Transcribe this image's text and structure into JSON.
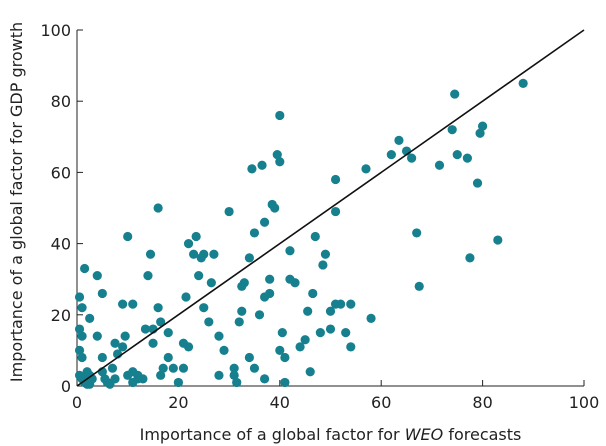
{
  "chart_data": {
    "type": "scatter",
    "title": "",
    "xlabel_prefix": "Importance of a global factor for ",
    "xlabel_italic": "WEO",
    "xlabel_suffix": " forecasts",
    "ylabel": "Importance of a global factor for GDP growth",
    "xlim": [
      0,
      100
    ],
    "ylim": [
      0,
      100
    ],
    "xticks": [
      0,
      20,
      40,
      60,
      80,
      100
    ],
    "yticks": [
      0,
      20,
      40,
      60,
      80,
      100
    ],
    "grid": false,
    "legend": "none",
    "point_color": "#17808f",
    "reference_line": {
      "from": [
        0,
        0
      ],
      "to": [
        100,
        100
      ],
      "color": "#111111"
    },
    "series": [
      {
        "points": [
          [
            0.5,
            25
          ],
          [
            0.5,
            16
          ],
          [
            0.5,
            10
          ],
          [
            1,
            14
          ],
          [
            1,
            8
          ],
          [
            0.5,
            3
          ],
          [
            1,
            2
          ],
          [
            1.5,
            1
          ],
          [
            2,
            0.5
          ],
          [
            2.5,
            3
          ],
          [
            2,
            4
          ],
          [
            3,
            2
          ],
          [
            2.5,
            0.5
          ],
          [
            1.5,
            33
          ],
          [
            4,
            31
          ],
          [
            5,
            26
          ],
          [
            2.5,
            19
          ],
          [
            1,
            22
          ],
          [
            4,
            14
          ],
          [
            5,
            8
          ],
          [
            5,
            4
          ],
          [
            5.5,
            2
          ],
          [
            6,
            1
          ],
          [
            6.5,
            0.5
          ],
          [
            7.5,
            2
          ],
          [
            7,
            5
          ],
          [
            8,
            9
          ],
          [
            7.5,
            12
          ],
          [
            9,
            11
          ],
          [
            9.5,
            14
          ],
          [
            9,
            23
          ],
          [
            11,
            23
          ],
          [
            10,
            42
          ],
          [
            10,
            3
          ],
          [
            11,
            1
          ],
          [
            11,
            4
          ],
          [
            12,
            2
          ],
          [
            12,
            3
          ],
          [
            13,
            2
          ],
          [
            13.5,
            16
          ],
          [
            14,
            31
          ],
          [
            14.5,
            37
          ],
          [
            15,
            16
          ],
          [
            15,
            12
          ],
          [
            16,
            22
          ],
          [
            16.5,
            18
          ],
          [
            16,
            50
          ],
          [
            16.5,
            3
          ],
          [
            17,
            5
          ],
          [
            18,
            15
          ],
          [
            18,
            8
          ],
          [
            19,
            5
          ],
          [
            20,
            1
          ],
          [
            21,
            5
          ],
          [
            21,
            12
          ],
          [
            21.5,
            25
          ],
          [
            22,
            11
          ],
          [
            22,
            40
          ],
          [
            23,
            37
          ],
          [
            23.5,
            42
          ],
          [
            24,
            31
          ],
          [
            24.5,
            36
          ],
          [
            25,
            22
          ],
          [
            25,
            37
          ],
          [
            26,
            18
          ],
          [
            26.5,
            29
          ],
          [
            27,
            37
          ],
          [
            28,
            14
          ],
          [
            28,
            3
          ],
          [
            29,
            10
          ],
          [
            30,
            49
          ],
          [
            31,
            3
          ],
          [
            31,
            5
          ],
          [
            31.5,
            1
          ],
          [
            32,
            18
          ],
          [
            32.5,
            21
          ],
          [
            32.5,
            28
          ],
          [
            33,
            29
          ],
          [
            34,
            36
          ],
          [
            34,
            8
          ],
          [
            34.5,
            61
          ],
          [
            35,
            5
          ],
          [
            35,
            43
          ],
          [
            36,
            20
          ],
          [
            36.5,
            62
          ],
          [
            37,
            46
          ],
          [
            37,
            25
          ],
          [
            37,
            2
          ],
          [
            38,
            26
          ],
          [
            38,
            30
          ],
          [
            38.5,
            51
          ],
          [
            39,
            50
          ],
          [
            39.5,
            65
          ],
          [
            40,
            63
          ],
          [
            40,
            76
          ],
          [
            40,
            10
          ],
          [
            40.5,
            15
          ],
          [
            41,
            1
          ],
          [
            41,
            8
          ],
          [
            42,
            38
          ],
          [
            42,
            30
          ],
          [
            43,
            29
          ],
          [
            44,
            11
          ],
          [
            45,
            13
          ],
          [
            45.5,
            21
          ],
          [
            46,
            4
          ],
          [
            46.5,
            26
          ],
          [
            47,
            42
          ],
          [
            48,
            15
          ],
          [
            48.5,
            34
          ],
          [
            49,
            37
          ],
          [
            50,
            21
          ],
          [
            50,
            16
          ],
          [
            51,
            23
          ],
          [
            51,
            49
          ],
          [
            51,
            58
          ],
          [
            52,
            23
          ],
          [
            53,
            15
          ],
          [
            54,
            23
          ],
          [
            54,
            11
          ],
          [
            57,
            61
          ],
          [
            58,
            19
          ],
          [
            62,
            65
          ],
          [
            63.5,
            69
          ],
          [
            65,
            66
          ],
          [
            66,
            64
          ],
          [
            67,
            43
          ],
          [
            67.5,
            28
          ],
          [
            71.5,
            62
          ],
          [
            74,
            72
          ],
          [
            74.5,
            82
          ],
          [
            75,
            65
          ],
          [
            77,
            64
          ],
          [
            77.5,
            36
          ],
          [
            79,
            57
          ],
          [
            79.5,
            71
          ],
          [
            80,
            73
          ],
          [
            83,
            41
          ],
          [
            88,
            85
          ]
        ]
      }
    ]
  }
}
